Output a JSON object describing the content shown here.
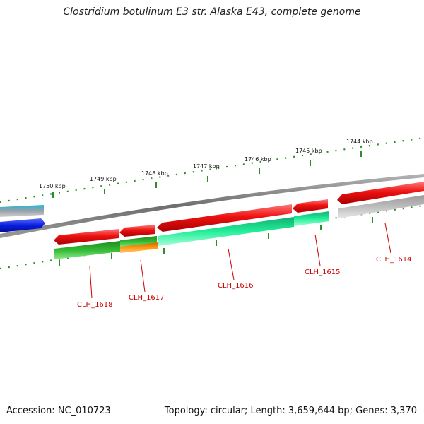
{
  "title": "Clostridium botulinum E3 str. Alaska E43, complete genome",
  "footer": {
    "accession": "Accession: NC_010723",
    "summary": "Topology: circular; Length: 3,659,644 bp; Genes: 3,370"
  },
  "colors": {
    "background": "#ffffff",
    "backbone": "#7a7a7a",
    "tick_marks": "#2e8b2e",
    "label_line": "#cc0000",
    "forward_genes": "#ee1111",
    "gene_blue": "#0a1ee0",
    "gene_green": "#33bb33",
    "gene_orange": "#ff9911",
    "gene_aqua": "#22ee99",
    "gene_grey": "#bdbdbd",
    "gene_cyan": "#22b8d8"
  },
  "scale_labels": [
    "1750 kbp",
    "1749 kbp",
    "1748 kbp",
    "1747 kbp",
    "1746 kbp",
    "1745 kbp",
    "1744 kbp"
  ],
  "gene_labels": [
    "CLH_1618",
    "CLH_1617",
    "CLH_1616",
    "CLH_1615",
    "CLH_1614"
  ]
}
